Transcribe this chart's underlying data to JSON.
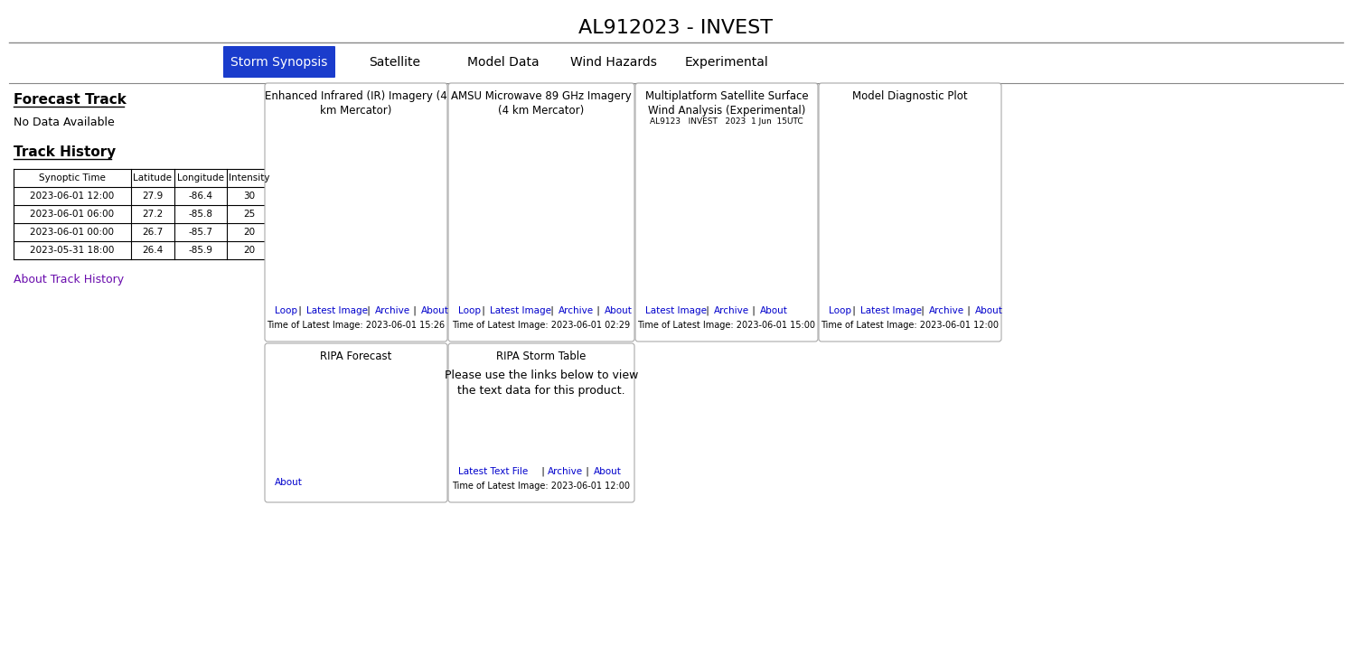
{
  "title": "AL912023 - INVEST",
  "nav_tabs": [
    "Storm Synopsis",
    "Satellite",
    "Model Data",
    "Wind Hazards",
    "Experimental"
  ],
  "active_tab": "Storm Synopsis",
  "active_tab_color": "#1a3ccc",
  "active_tab_text_color": "#ffffff",
  "inactive_tab_text_color": "#000000",
  "bg_color": "#ffffff",
  "left_panel": {
    "forecast_track_title": "Forecast Track",
    "no_data_text": "No Data Available",
    "track_history_title": "Track History",
    "table_headers": [
      "Synoptic Time",
      "Latitude",
      "Longitude",
      "Intensity"
    ],
    "table_rows": [
      [
        "2023-06-01 12:00",
        "27.9",
        "-86.4",
        "30"
      ],
      [
        "2023-06-01 06:00",
        "27.2",
        "-85.8",
        "25"
      ],
      [
        "2023-06-01 00:00",
        "26.7",
        "-85.7",
        "20"
      ],
      [
        "2023-05-31 18:00",
        "26.4",
        "-85.9",
        "20"
      ]
    ],
    "about_link": "About Track History",
    "about_link_color": "#6a0dad"
  },
  "panels": [
    {
      "title": "Enhanced Infrared (IR) Imagery (4\nkm Mercator)",
      "links": [
        "Loop",
        "Latest Image",
        "Archive",
        "About"
      ],
      "time_label": "Time of Latest Image: 2023-06-01 15:26",
      "img_placeholder_color": "#444444"
    },
    {
      "title": "AMSU Microwave 89 GHz Imagery\n(4 km Mercator)",
      "links": [
        "Loop",
        "Latest Image",
        "Archive",
        "About"
      ],
      "time_label": "Time of Latest Image: 2023-06-01 02:29",
      "img_placeholder_color": "#446688"
    },
    {
      "title": "Multiplatform Satellite Surface\nWind Analysis (Experimental)",
      "header_line": "AL9123   INVEST   2023  1 Jun  15UTC",
      "links": [
        "Latest Image",
        "Archive",
        "About"
      ],
      "time_label": "Time of Latest Image: 2023-06-01 15:00",
      "img_placeholder_color": "#dddddd"
    },
    {
      "title": "Model Diagnostic Plot",
      "links": [
        "Loop",
        "Latest Image",
        "Archive",
        "About"
      ],
      "time_label": "Time of Latest Image: 2023-06-01 12:00",
      "img_placeholder_color": "#cccccc"
    }
  ],
  "bottom_panels": [
    {
      "title": "RIPA Forecast",
      "links": [
        "About"
      ],
      "time_label": "",
      "img_placeholder_color": "#f0f0f0",
      "has_img": true
    },
    {
      "title": "RIPA Storm Table",
      "text": "Please use the links below to view\nthe text data for this product.",
      "links": [
        "Latest Text File",
        " | ",
        "Archive",
        "About"
      ],
      "time_label": "Time of Latest Image: 2023-06-01 12:00",
      "has_img": false
    }
  ],
  "border_color": "#aaaaaa",
  "link_color": "#0000cc",
  "separator_color": "#888888",
  "title_fontsize": 16,
  "nav_fontsize": 10,
  "panel_title_fontsize": 8.5,
  "body_fontsize": 8,
  "link_fontsize": 7.5
}
